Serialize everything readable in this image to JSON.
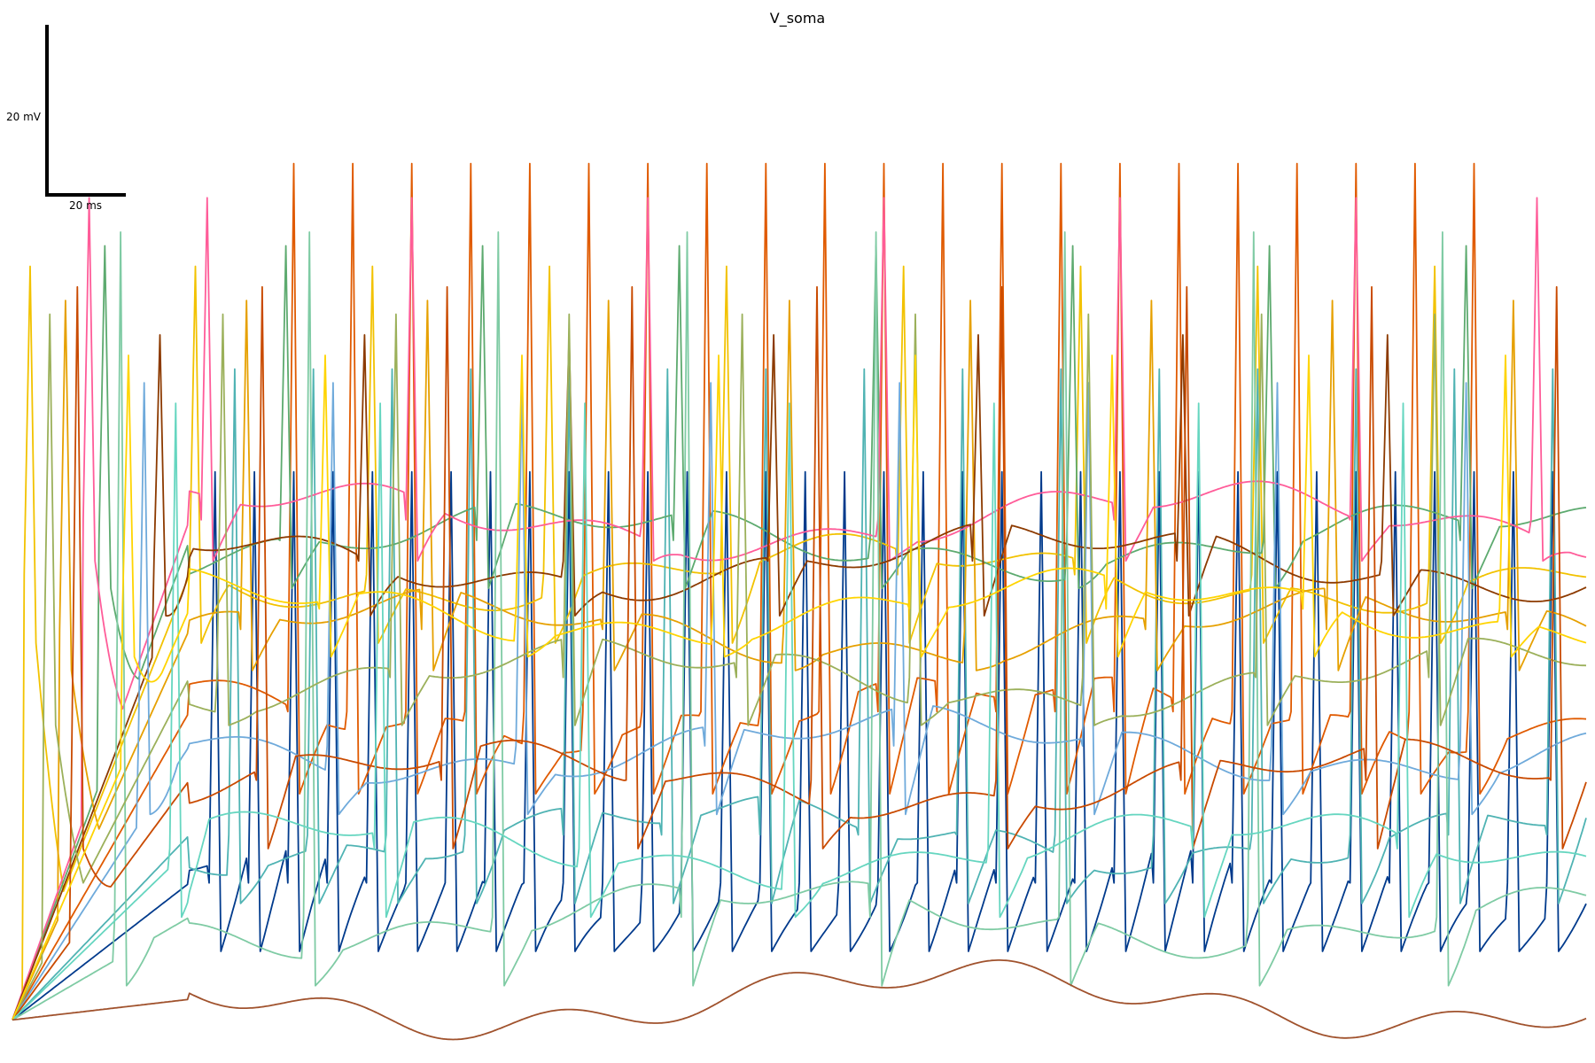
{
  "chart_data": {
    "type": "line",
    "title": "V_soma",
    "xlabel": "",
    "ylabel": "",
    "axes_visible": false,
    "grid": false,
    "legend": "none",
    "scale_bar": {
      "voltage_label": "20 mV",
      "time_label": "20 ms",
      "voltage_value": 20,
      "time_value": 20,
      "voltage_unit": "mV",
      "time_unit": "ms"
    },
    "xlim": [
      0,
      400
    ],
    "ylim": [
      -90,
      60
    ],
    "series_note_colors": [
      "#003A8C",
      "#E05A00",
      "#F2C200",
      "#4FB3B3",
      "#5DAA6F",
      "#E6A000",
      "#FF5C99",
      "#8C3A00",
      "#6FAADB",
      "#7FCBA4",
      "#9BB05A",
      "#C94A00",
      "#66D6C0",
      "#FFD400",
      "#A0522D"
    ],
    "series": [
      {
        "color": "#003A8C",
        "rest": -65,
        "spike_times": [
          50,
          60,
          70,
          80,
          90,
          100,
          110,
          120,
          130,
          140,
          150,
          160,
          170,
          180,
          190,
          200,
          210,
          220,
          230,
          240,
          250,
          260,
          270,
          280,
          290,
          300,
          310,
          320,
          330,
          340,
          350,
          360,
          370,
          380,
          390
        ],
        "spike_peak": -5,
        "ahp": -75
      },
      {
        "color": "#E05A00",
        "rest": -40,
        "spike_times": [
          70,
          85,
          100,
          115,
          130,
          145,
          160,
          175,
          190,
          205,
          220,
          235,
          250,
          265,
          280,
          295,
          310,
          325,
          340,
          355,
          370
        ],
        "spike_peak": 40,
        "ahp": -52
      },
      {
        "color": "#F2C200",
        "rest": -20,
        "spike_times": [
          3,
          45,
          90,
          135,
          180,
          225,
          270,
          315,
          360
        ],
        "spike_peak": 25,
        "ahp": -30
      },
      {
        "color": "#4FB3B3",
        "rest": -58,
        "spike_times": [
          55,
          75,
          95,
          115,
          140,
          165,
          190,
          215,
          240,
          265,
          290,
          315,
          340,
          365,
          390
        ],
        "spike_peak": 10,
        "ahp": -68
      },
      {
        "color": "#5DAA6F",
        "rest": -15,
        "spike_times": [
          22,
          68,
          118,
          168,
          218,
          268,
          318,
          368
        ],
        "spike_peak": 28,
        "ahp": -22
      },
      {
        "color": "#E6A000",
        "rest": -28,
        "spike_times": [
          12,
          58,
          104,
          150,
          196,
          242,
          288,
          334,
          380
        ],
        "spike_peak": 20,
        "ahp": -34
      },
      {
        "color": "#FF5C99",
        "rest": -12,
        "spike_times": [
          18,
          48,
          100,
          160,
          220,
          280,
          340,
          386
        ],
        "spike_peak": 35,
        "ahp": -18
      },
      {
        "color": "#8C3A00",
        "rest": -18,
        "spike_times": [
          36,
          88,
          140,
          192,
          244,
          296,
          348
        ],
        "spike_peak": 15,
        "ahp": -26
      },
      {
        "color": "#6FAADB",
        "rest": -45,
        "spike_times": [
          32,
          80,
          128,
          176,
          224,
          272,
          320,
          368
        ],
        "spike_peak": 8,
        "ahp": -55
      },
      {
        "color": "#7FCBA4",
        "rest": -70,
        "spike_times": [
          26,
          74,
          122,
          170,
          218,
          266,
          314,
          362
        ],
        "spike_peak": 30,
        "ahp": -80
      },
      {
        "color": "#9BB05A",
        "rest": -35,
        "spike_times": [
          8,
          52,
          96,
          140,
          184,
          228,
          272,
          316,
          360
        ],
        "spike_peak": 18,
        "ahp": -42
      },
      {
        "color": "#C94A00",
        "rest": -50,
        "spike_times": [
          15,
          62,
          109,
          156,
          203,
          250,
          297,
          344,
          391
        ],
        "spike_peak": 22,
        "ahp": -60
      },
      {
        "color": "#66D6C0",
        "rest": -60,
        "spike_times": [
          40,
          92,
          144,
          196,
          248,
          300,
          352
        ],
        "spike_peak": 5,
        "ahp": -70
      },
      {
        "color": "#FFD400",
        "rest": -25,
        "spike_times": [
          28,
          78,
          128,
          178,
          228,
          278,
          328,
          378
        ],
        "spike_peak": 12,
        "ahp": -32
      },
      {
        "color": "#A0522D",
        "rest": -82,
        "spike_times": [],
        "spike_peak": 0,
        "ahp": -86
      }
    ]
  }
}
